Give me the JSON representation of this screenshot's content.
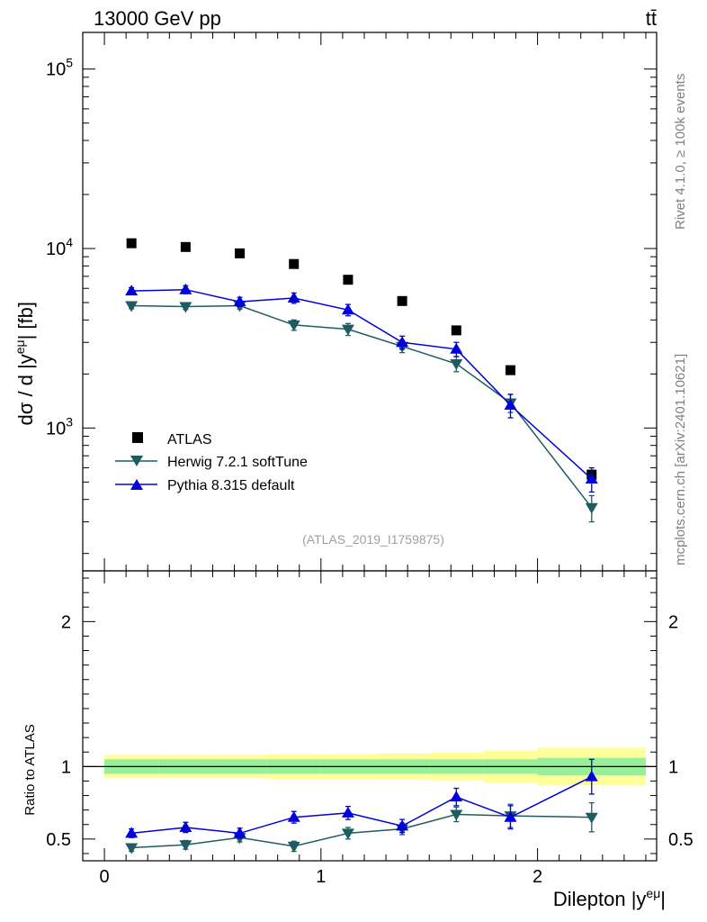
{
  "header": {
    "energy_label": "13000 GeV pp",
    "process_label": "tt̄"
  },
  "side_text": {
    "rivet": "Rivet 4.1.0, ≥ 100k events",
    "mcplots": "mcplots.cern.ch [arXiv:2401.10621]"
  },
  "watermark": "(ATLAS_2019_I1759875)",
  "axes": {
    "ylabel_top": "dσ / d |y^eμ| [fb]",
    "ylabel_top_base": "dσ / d |y",
    "ylabel_top_sup": "eμ",
    "ylabel_top_tail": "| [fb]",
    "ylabel_bottom": "Ratio to ATLAS",
    "xlabel": "Dilepton |y^eμ|",
    "xlabel_base": "Dilepton |y",
    "xlabel_sup": "eμ",
    "xlabel_tail": "|"
  },
  "legend": [
    {
      "label": "ATLAS",
      "color": "#000000",
      "marker": "square"
    },
    {
      "label": "Herwig 7.2.1 softTune",
      "color": "#1d5c63",
      "marker": "triangle-down"
    },
    {
      "label": "Pythia 8.315 default",
      "color": "#0000dd",
      "marker": "triangle-up"
    }
  ],
  "chart_data": {
    "type": "scatter",
    "title": "13000 GeV pp  tt̄",
    "xlabel": "Dilepton |y^eμ|",
    "xlim": [
      -0.1,
      2.55
    ],
    "xticks": [
      0,
      1,
      2
    ],
    "main": {
      "ylabel": "dσ / d |y^eμ| [fb]",
      "yscale": "log",
      "ylim": [
        160,
        160000
      ],
      "ytick_labels": [
        {
          "value": 1000,
          "base": "10",
          "exp": "3"
        },
        {
          "value": 10000,
          "base": "10",
          "exp": "4"
        },
        {
          "value": 100000,
          "base": "10",
          "exp": "5"
        }
      ]
    },
    "ratio": {
      "ylabel": "Ratio to ATLAS",
      "ylim": [
        0.35,
        2.35
      ],
      "yticks": [
        0.5,
        1,
        2
      ],
      "ytick_labels": [
        "0.5",
        "1",
        "2"
      ]
    },
    "bins": [
      {
        "low": 0.0,
        "high": 0.25
      },
      {
        "low": 0.25,
        "high": 0.5
      },
      {
        "low": 0.5,
        "high": 0.75
      },
      {
        "low": 0.75,
        "high": 1.0
      },
      {
        "low": 1.0,
        "high": 1.25
      },
      {
        "low": 1.25,
        "high": 1.5
      },
      {
        "low": 1.5,
        "high": 1.75
      },
      {
        "low": 1.75,
        "high": 2.0
      },
      {
        "low": 2.0,
        "high": 2.5
      }
    ],
    "x": [
      0.125,
      0.375,
      0.625,
      0.875,
      1.125,
      1.375,
      1.625,
      1.875,
      2.25
    ],
    "series": [
      {
        "name": "ATLAS",
        "values": [
          10700,
          10200,
          9400,
          8200,
          6700,
          5100,
          3500,
          2100,
          550
        ],
        "stat_band": [
          0.05,
          0.05,
          0.05,
          0.05,
          0.05,
          0.05,
          0.05,
          0.05,
          0.06
        ],
        "total_band": [
          0.08,
          0.08,
          0.08,
          0.085,
          0.085,
          0.09,
          0.095,
          0.11,
          0.13
        ]
      },
      {
        "name": "Herwig 7.2.1 softTune",
        "values": [
          4800,
          4750,
          4800,
          3750,
          3550,
          2850,
          2280,
          1380,
          360
        ],
        "errors": [
          180,
          170,
          200,
          250,
          270,
          220,
          220,
          160,
          60
        ],
        "ratio": [
          0.44,
          0.46,
          0.51,
          0.45,
          0.54,
          0.57,
          0.67,
          0.66,
          0.65
        ],
        "ratio_errors": [
          0.025,
          0.03,
          0.03,
          0.035,
          0.04,
          0.04,
          0.05,
          0.08,
          0.1
        ]
      },
      {
        "name": "Pythia 8.315 default",
        "values": [
          5800,
          5900,
          5050,
          5300,
          4550,
          3000,
          2750,
          1340,
          520
        ],
        "errors": [
          250,
          300,
          300,
          350,
          330,
          250,
          250,
          200,
          80
        ],
        "ratio": [
          0.54,
          0.58,
          0.54,
          0.65,
          0.68,
          0.59,
          0.79,
          0.65,
          0.93
        ],
        "ratio_errors": [
          0.03,
          0.035,
          0.035,
          0.04,
          0.045,
          0.045,
          0.06,
          0.08,
          0.12
        ]
      }
    ]
  }
}
